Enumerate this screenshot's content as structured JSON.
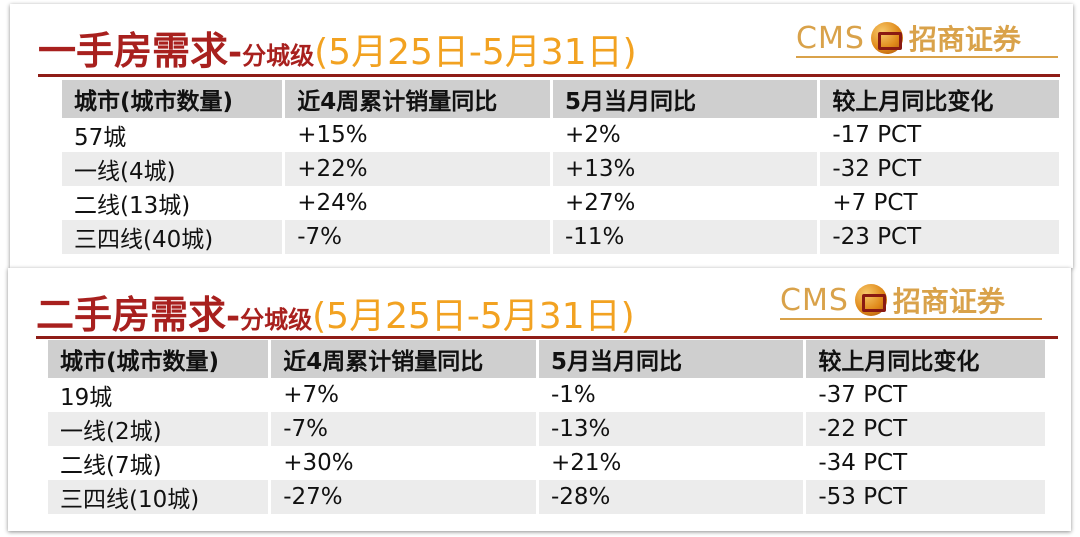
{
  "sections": [
    {
      "title_main": "一手房需求",
      "title_dash": "-",
      "title_sub": "分城级",
      "title_period": "(5月25日-5月31日)",
      "logo": {
        "cms": "CMS",
        "emblem": "cms-emblem-icon",
        "cn": "招商证券"
      },
      "headers": [
        "城市(城市数量)",
        "近4周累计销量同比",
        "5月当月同比",
        "较上月同比变化"
      ],
      "rows": [
        [
          "57城",
          "+15%",
          "+2%",
          "-17 PCT"
        ],
        [
          "一线(4城)",
          "+22%",
          "+13%",
          "-32 PCT"
        ],
        [
          "二线(13城)",
          "+24%",
          "+27%",
          "+7 PCT"
        ],
        [
          "三四线(40城)",
          "-7%",
          "-11%",
          "-23 PCT"
        ]
      ]
    },
    {
      "title_main": "二手房需求",
      "title_dash": "-",
      "title_sub": "分城级",
      "title_period": "(5月25日-5月31日)",
      "logo": {
        "cms": "CMS",
        "emblem": "cms-emblem-icon",
        "cn": "招商证券"
      },
      "headers": [
        "城市(城市数量)",
        "近4周累计销量同比",
        "5月当月同比",
        "较上月同比变化"
      ],
      "rows": [
        [
          "19城",
          "+7%",
          "-1%",
          "-37 PCT"
        ],
        [
          "一线(2城)",
          "-7%",
          "-13%",
          "-22 PCT"
        ],
        [
          "二线(7城)",
          "+30%",
          "+21%",
          "-34 PCT"
        ],
        [
          "三四线(10城)",
          "-27%",
          "-28%",
          "-53 PCT"
        ]
      ]
    }
  ],
  "colors": {
    "title": "#a8201e",
    "period": "#f2a221",
    "logo": "#d9a24a",
    "rule": "#8f1d17"
  }
}
